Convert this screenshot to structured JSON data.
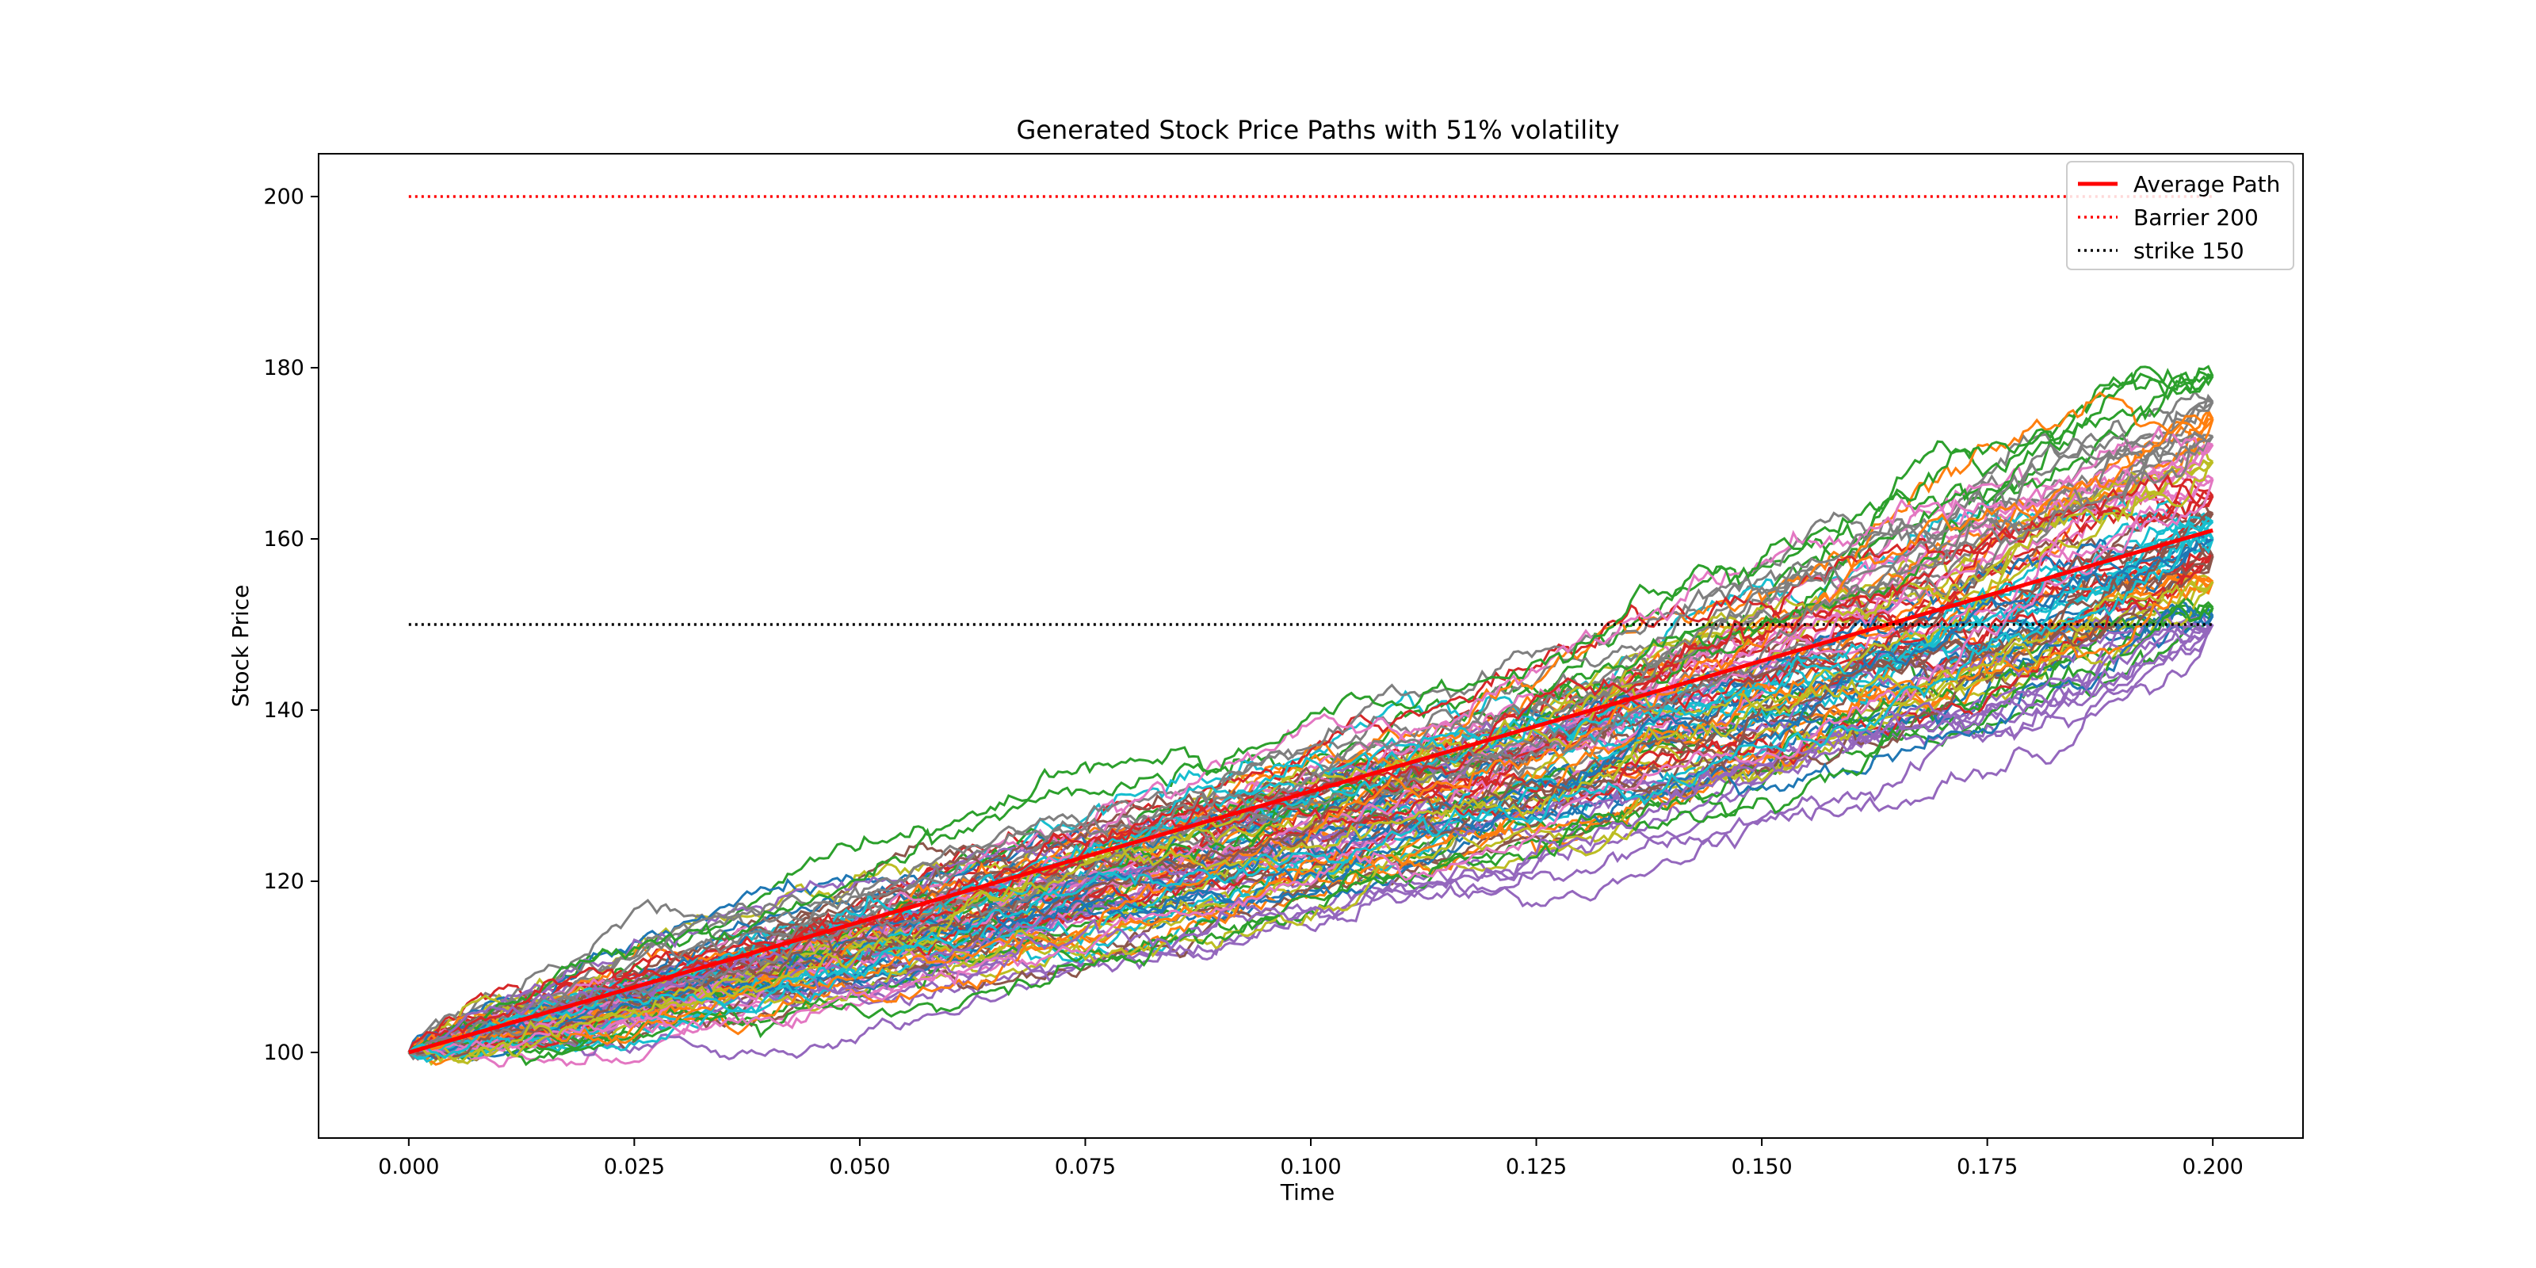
{
  "chart_data": {
    "type": "line",
    "title": "Generated Stock Price Paths with 51% volatility",
    "xlabel": "Time",
    "ylabel": "Stock Price",
    "xlim": [
      -0.01,
      0.21
    ],
    "ylim": [
      90,
      205
    ],
    "x_ticks": [
      0.0,
      0.025,
      0.05,
      0.075,
      0.1,
      0.125,
      0.15,
      0.175,
      0.2
    ],
    "x_tick_labels": [
      "0.000",
      "0.025",
      "0.050",
      "0.075",
      "0.100",
      "0.125",
      "0.150",
      "0.175",
      "0.200"
    ],
    "y_ticks": [
      100,
      120,
      140,
      160,
      180,
      200
    ],
    "y_tick_labels": [
      "100",
      "120",
      "140",
      "160",
      "180",
      "200"
    ],
    "grid": false,
    "legend_position": "top-right",
    "simulated_paths": {
      "count": 100,
      "x_start": 0.0,
      "x_end": 0.2,
      "start_value": 100,
      "final_values": [
        151,
        155,
        152,
        158,
        150,
        163,
        171,
        176,
        169,
        162,
        160,
        174,
        179,
        165,
        150,
        158,
        167,
        172,
        155,
        160
      ],
      "palette": [
        "#1f77b4",
        "#ff7f0e",
        "#2ca02c",
        "#d62728",
        "#9467bd",
        "#8c564b",
        "#e377c2",
        "#7f7f7f",
        "#bcbd22",
        "#17becf"
      ]
    },
    "series": [
      {
        "name": "Average Path",
        "x": [
          0.0,
          0.2
        ],
        "values": [
          100,
          161
        ],
        "color": "#ff0000",
        "style": "solid"
      },
      {
        "name": "Barrier 200",
        "x": [
          0.0,
          0.2
        ],
        "values": [
          200,
          200
        ],
        "color": "#ff0000",
        "style": "dotted"
      },
      {
        "name": "strike 150",
        "x": [
          0.0,
          0.2
        ],
        "values": [
          150,
          150
        ],
        "color": "#000000",
        "style": "dotted"
      }
    ]
  }
}
